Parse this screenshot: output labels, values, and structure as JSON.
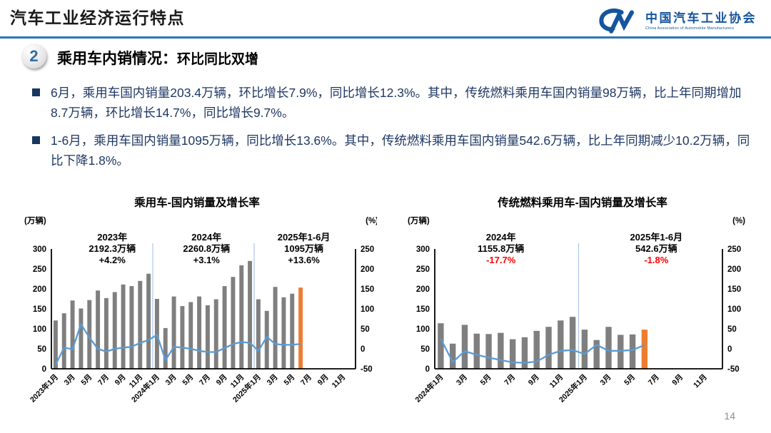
{
  "slide": {
    "title": "汽车工业经济运行特点",
    "page_number": "14"
  },
  "logo": {
    "org_cn": "中国汽车工业协会",
    "org_en": "China Association of Automobile Manufacturers"
  },
  "section": {
    "badge": "2",
    "heading": "乘用车内销情况：",
    "subheading": "环比同比双增"
  },
  "bullets": [
    {
      "text": "6月，乘用车国内销量203.4万辆，环比增长7.9%，同比增长12.3%。其中，传统燃料乘用车国内销量98万辆，比上年同期增加8.7万辆，环比增长14.7%，同比增长9.7%。"
    },
    {
      "text": "1-6月，乘用车国内销量1095万辆，同比增长13.6%。其中，传统燃料乘用车国内销量542.6万辆，比上年同期减少10.2万辆，同比下降1.8%。"
    }
  ],
  "colors": {
    "accent_blue": "#2E74B5",
    "bar_gray": "#7F7F7F",
    "bar_highlight_orange": "#ED7D31",
    "line_blue": "#5B9BD5",
    "divider_light_blue": "#A9C9E8",
    "body_text_navy": "#1F3864",
    "negative_red": "#FF0000",
    "logo_blue": "#15549E"
  },
  "chart_data": [
    {
      "type": "bar",
      "combo": "bar+line",
      "title": "乘用车-国内销量及增长率",
      "left_axis_label": "(万辆)",
      "right_axis_label": "(%)",
      "left_axis": {
        "min": 0,
        "max": 300,
        "step": 50
      },
      "right_axis": {
        "min": -50,
        "max": 250,
        "step": 50
      },
      "slots": 36,
      "x_tick_labels": [
        "2023年1月",
        "3月",
        "5月",
        "7月",
        "9月",
        "11月",
        "2024年1月",
        "3月",
        "5月",
        "7月",
        "9月",
        "11月",
        "2025年1月",
        "3月",
        "5月",
        "7月",
        "9月",
        "11月"
      ],
      "bar_values": [
        121,
        139,
        171,
        151,
        172,
        196,
        177,
        192,
        211,
        207,
        220,
        238,
        175,
        102,
        181,
        157,
        167,
        181,
        159,
        174,
        207,
        230,
        259,
        270,
        174,
        145,
        205,
        179,
        188,
        203.4
      ],
      "line_values": [
        -40,
        3,
        -1,
        62,
        28,
        0,
        -7,
        0,
        3,
        5,
        15,
        22,
        35,
        -28,
        5,
        3,
        0,
        -5,
        -8,
        -8,
        2,
        12,
        17,
        15,
        -5,
        30,
        12,
        10,
        10,
        12.3
      ],
      "highlight_last_bar": true,
      "year_divider_slots": [
        12,
        24
      ],
      "geom": {
        "L": 56,
        "R": 482
      },
      "annotations": [
        {
          "lines": [
            "2023年",
            "2192.3万辆",
            "+4.2%"
          ],
          "x_frac": 0.2,
          "last_line_red": false
        },
        {
          "lines": [
            "2024年",
            "2260.8万辆",
            "+3.1%"
          ],
          "x_frac": 0.51,
          "last_line_red": false
        },
        {
          "lines": [
            "2025年1-6月",
            "1095万辆",
            "+13.6%"
          ],
          "x_frac": 0.83,
          "last_line_red": false
        }
      ]
    },
    {
      "type": "bar",
      "combo": "bar+line",
      "title": "传统燃料乘用车-国内销量及增长率",
      "left_axis_label": "(万辆)",
      "right_axis_label": "(%)",
      "left_axis": {
        "min": 0,
        "max": 300,
        "step": 50
      },
      "right_axis": {
        "min": -50,
        "max": 250,
        "step": 50
      },
      "slots": 24,
      "x_tick_labels": [
        "2024年1月",
        "3月",
        "5月",
        "7月",
        "9月",
        "11月",
        "2025年1月",
        "3月",
        "5月",
        "7月",
        "9月",
        "11月"
      ],
      "bar_values": [
        114,
        63,
        110,
        88,
        87,
        90,
        74,
        79,
        95,
        105,
        121,
        130,
        98,
        72,
        105,
        85,
        86,
        98
      ],
      "line_values": [
        25,
        -33,
        -6,
        -15,
        -22,
        -28,
        -34,
        -35,
        -32,
        -15,
        -5,
        -3,
        -13,
        10,
        -5,
        -5,
        -3,
        9.7
      ],
      "highlight_last_bar": true,
      "year_divider_slots": [
        12
      ],
      "geom": {
        "L": 53,
        "R": 456
      },
      "annotations": [
        {
          "lines": [
            "2024年",
            "1155.8万辆",
            "-17.7%"
          ],
          "x_frac": 0.23,
          "last_line_red": true
        },
        {
          "lines": [
            "2025年1-6月",
            "542.6万辆",
            "-1.8%"
          ],
          "x_frac": 0.77,
          "last_line_red": true
        }
      ]
    }
  ]
}
